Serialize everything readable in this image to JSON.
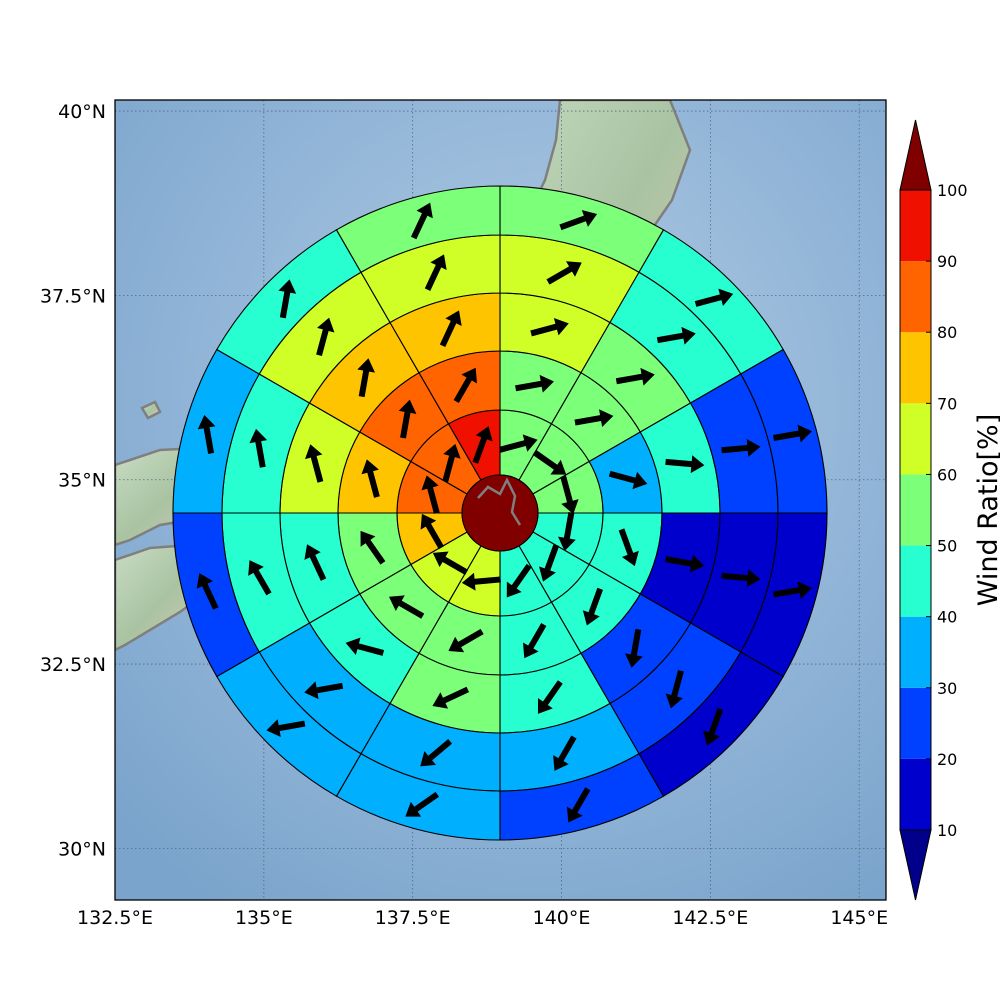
{
  "chart_data": {
    "type": "heatmap",
    "projection": "polar-sector-grid",
    "axes": {
      "x_ticks": [
        "132.5°E",
        "135°E",
        "137.5°E",
        "140°E",
        "142.5°E",
        "145°E"
      ],
      "x_tick_values": [
        132.5,
        135,
        137.5,
        140,
        142.5,
        145
      ],
      "y_ticks": [
        "30°N",
        "32.5°N",
        "35°N",
        "37.5°N",
        "40°N"
      ],
      "y_tick_values": [
        30,
        32.5,
        35,
        37.5,
        40
      ],
      "xlim": [
        132.5,
        145.45
      ],
      "ylim": [
        29.3,
        40.15
      ],
      "grid": true
    },
    "center_value": 100,
    "sectors_per_ring": 12,
    "sector_order": "clockwise from north (N-NNE first)",
    "ring_values": [
      [
        55,
        55,
        50,
        45,
        40,
        40,
        65,
        65,
        75,
        85,
        85,
        95
      ],
      [
        55,
        55,
        35,
        45,
        45,
        45,
        55,
        55,
        50,
        75,
        85,
        85
      ],
      [
        65,
        55,
        45,
        15,
        25,
        45,
        55,
        45,
        45,
        65,
        75,
        75
      ],
      [
        65,
        45,
        25,
        15,
        25,
        35,
        35,
        35,
        45,
        45,
        65,
        65
      ],
      [
        55,
        45,
        25,
        15,
        15,
        25,
        35,
        35,
        25,
        35,
        45,
        55
      ]
    ],
    "arrow_directions_deg": [
      [
        75,
        125,
        165,
        190,
        200,
        215,
        265,
        300,
        330,
        345,
        15,
        20
      ],
      [
        80,
        80,
        105,
        160,
        200,
        210,
        240,
        300,
        325,
        345,
        10,
        30
      ],
      [
        75,
        80,
        95,
        100,
        190,
        215,
        245,
        285,
        335,
        345,
        10,
        25
      ],
      [
        60,
        80,
        85,
        95,
        195,
        210,
        230,
        260,
        330,
        350,
        15,
        25
      ],
      [
        70,
        75,
        80,
        80,
        200,
        210,
        235,
        260,
        335,
        350,
        10,
        25
      ]
    ],
    "colorbar": {
      "label": "Wind Ratio[%]",
      "ticks": [
        "10",
        "20",
        "30",
        "40",
        "50",
        "60",
        "70",
        "80",
        "90",
        "100"
      ],
      "bounds": [
        10,
        20,
        30,
        40,
        50,
        60,
        70,
        80,
        90,
        100
      ],
      "colors": [
        "#0000cc",
        "#0040ff",
        "#00b0ff",
        "#28ffd0",
        "#7cff79",
        "#d0ff28",
        "#ffc400",
        "#ff6400",
        "#f01000"
      ],
      "under_color": "#00008b",
      "over_color": "#800000",
      "extend": "both"
    }
  }
}
